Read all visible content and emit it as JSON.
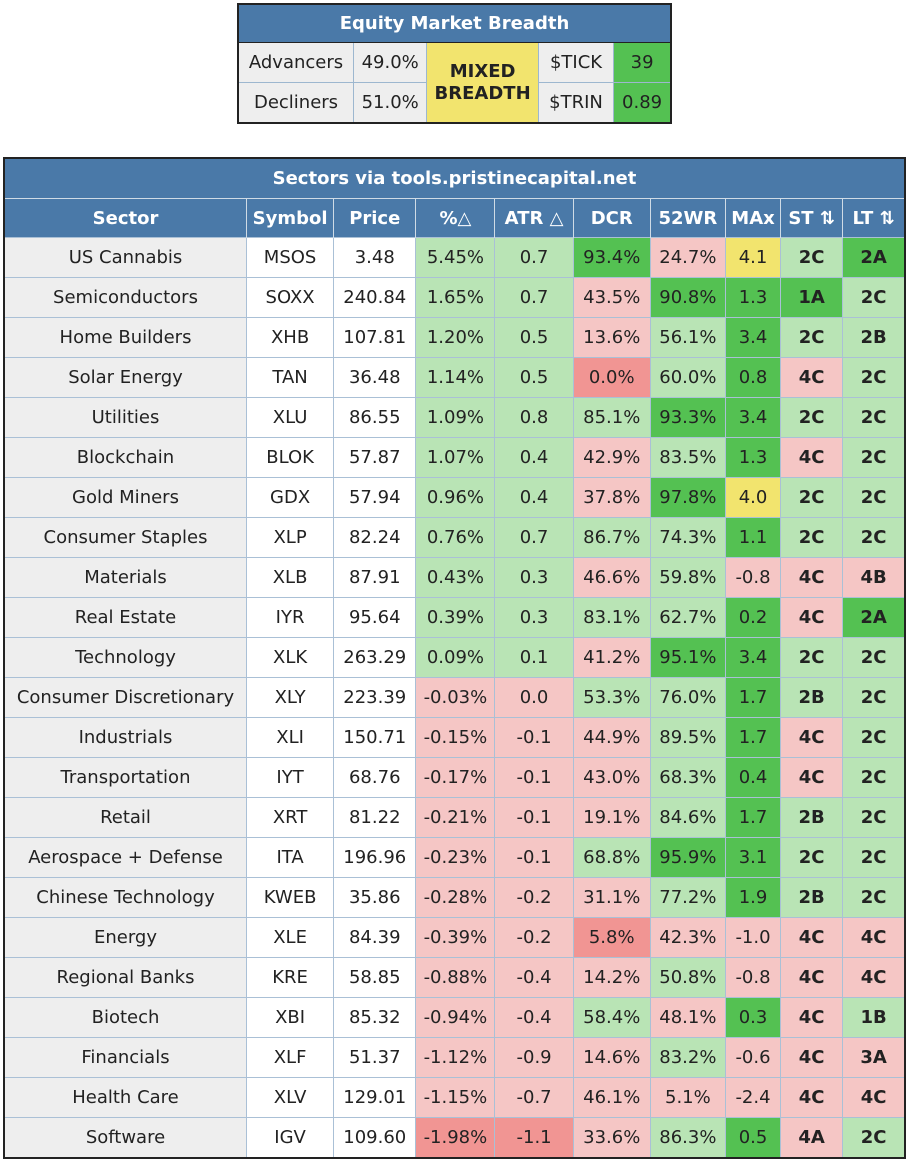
{
  "breadth": {
    "title": "Equity Market Breadth",
    "advancers_label": "Advancers",
    "advancers_value": "49.0%",
    "decliners_label": "Decliners",
    "decliners_value": "51.0%",
    "status_line1": "MIXED",
    "status_line2": "BREADTH",
    "tick_label": "$TICK",
    "tick_value": "39",
    "trin_label": "$TRIN",
    "trin_value": "0.89"
  },
  "chart_data": {
    "type": "table",
    "title": "Sectors via tools.pristinecapital.net",
    "columns": [
      "Sector",
      "Symbol",
      "Price",
      "%△",
      "ATR △",
      "DCR",
      "52WR",
      "MAx",
      "ST ⇅",
      "LT ⇅"
    ],
    "rows": [
      [
        "US Cannabis",
        "MSOS",
        "3.48",
        "5.45%",
        "0.7",
        "93.4%",
        "24.7%",
        "4.1",
        "2C",
        "2A"
      ],
      [
        "Semiconductors",
        "SOXX",
        "240.84",
        "1.65%",
        "0.7",
        "43.5%",
        "90.8%",
        "1.3",
        "1A",
        "2C"
      ],
      [
        "Home Builders",
        "XHB",
        "107.81",
        "1.20%",
        "0.5",
        "13.6%",
        "56.1%",
        "3.4",
        "2C",
        "2B"
      ],
      [
        "Solar Energy",
        "TAN",
        "36.48",
        "1.14%",
        "0.5",
        "0.0%",
        "60.0%",
        "0.8",
        "4C",
        "2C"
      ],
      [
        "Utilities",
        "XLU",
        "86.55",
        "1.09%",
        "0.8",
        "85.1%",
        "93.3%",
        "3.4",
        "2C",
        "2C"
      ],
      [
        "Blockchain",
        "BLOK",
        "57.87",
        "1.07%",
        "0.4",
        "42.9%",
        "83.5%",
        "1.3",
        "4C",
        "2C"
      ],
      [
        "Gold Miners",
        "GDX",
        "57.94",
        "0.96%",
        "0.4",
        "37.8%",
        "97.8%",
        "4.0",
        "2C",
        "2C"
      ],
      [
        "Consumer Staples",
        "XLP",
        "82.24",
        "0.76%",
        "0.7",
        "86.7%",
        "74.3%",
        "1.1",
        "2C",
        "2C"
      ],
      [
        "Materials",
        "XLB",
        "87.91",
        "0.43%",
        "0.3",
        "46.6%",
        "59.8%",
        "-0.8",
        "4C",
        "4B"
      ],
      [
        "Real Estate",
        "IYR",
        "95.64",
        "0.39%",
        "0.3",
        "83.1%",
        "62.7%",
        "0.2",
        "4C",
        "2A"
      ],
      [
        "Technology",
        "XLK",
        "263.29",
        "0.09%",
        "0.1",
        "41.2%",
        "95.1%",
        "3.4",
        "2C",
        "2C"
      ],
      [
        "Consumer Discretionary",
        "XLY",
        "223.39",
        "-0.03%",
        "0.0",
        "53.3%",
        "76.0%",
        "1.7",
        "2B",
        "2C"
      ],
      [
        "Industrials",
        "XLI",
        "150.71",
        "-0.15%",
        "-0.1",
        "44.9%",
        "89.5%",
        "1.7",
        "4C",
        "2C"
      ],
      [
        "Transportation",
        "IYT",
        "68.76",
        "-0.17%",
        "-0.1",
        "43.0%",
        "68.3%",
        "0.4",
        "4C",
        "2C"
      ],
      [
        "Retail",
        "XRT",
        "81.22",
        "-0.21%",
        "-0.1",
        "19.1%",
        "84.6%",
        "1.7",
        "2B",
        "2C"
      ],
      [
        "Aerospace + Defense",
        "ITA",
        "196.96",
        "-0.23%",
        "-0.1",
        "68.8%",
        "95.9%",
        "3.1",
        "2C",
        "2C"
      ],
      [
        "Chinese Technology",
        "KWEB",
        "35.86",
        "-0.28%",
        "-0.2",
        "31.1%",
        "77.2%",
        "1.9",
        "2B",
        "2C"
      ],
      [
        "Energy",
        "XLE",
        "84.39",
        "-0.39%",
        "-0.2",
        "5.8%",
        "42.3%",
        "-1.0",
        "4C",
        "4C"
      ],
      [
        "Regional Banks",
        "KRE",
        "58.85",
        "-0.88%",
        "-0.4",
        "14.2%",
        "50.8%",
        "-0.8",
        "4C",
        "4C"
      ],
      [
        "Biotech",
        "XBI",
        "85.32",
        "-0.94%",
        "-0.4",
        "58.4%",
        "48.1%",
        "0.3",
        "4C",
        "1B"
      ],
      [
        "Financials",
        "XLF",
        "51.37",
        "-1.12%",
        "-0.9",
        "14.6%",
        "83.2%",
        "-0.6",
        "4C",
        "3A"
      ],
      [
        "Health Care",
        "XLV",
        "129.01",
        "-1.15%",
        "-0.7",
        "46.1%",
        "5.1%",
        "-2.4",
        "4C",
        "4C"
      ],
      [
        "Software",
        "IGV",
        "109.60",
        "-1.98%",
        "-1.1",
        "33.6%",
        "86.3%",
        "0.5",
        "4A",
        "2C"
      ]
    ],
    "cell_colors": [
      [
        "l",
        "w",
        "w",
        "lg",
        "lg",
        "dg",
        "lr",
        "yl",
        "lg",
        "dg"
      ],
      [
        "l",
        "w",
        "w",
        "lg",
        "lg",
        "lr",
        "dg",
        "dg",
        "dg",
        "lg"
      ],
      [
        "l",
        "w",
        "w",
        "lg",
        "lg",
        "lr",
        "lg",
        "dg",
        "lg",
        "lg"
      ],
      [
        "l",
        "w",
        "w",
        "lg",
        "lg",
        "dr",
        "lg",
        "dg",
        "lr",
        "lg"
      ],
      [
        "l",
        "w",
        "w",
        "lg",
        "lg",
        "lg",
        "dg",
        "dg",
        "lg",
        "lg"
      ],
      [
        "l",
        "w",
        "w",
        "lg",
        "lg",
        "lr",
        "lg",
        "dg",
        "lr",
        "lg"
      ],
      [
        "l",
        "w",
        "w",
        "lg",
        "lg",
        "lr",
        "dg",
        "yl",
        "lg",
        "lg"
      ],
      [
        "l",
        "w",
        "w",
        "lg",
        "lg",
        "lg",
        "lg",
        "dg",
        "lg",
        "lg"
      ],
      [
        "l",
        "w",
        "w",
        "lg",
        "lg",
        "lr",
        "lg",
        "lr",
        "lr",
        "lr"
      ],
      [
        "l",
        "w",
        "w",
        "lg",
        "lg",
        "lg",
        "lg",
        "dg",
        "lr",
        "dg"
      ],
      [
        "l",
        "w",
        "w",
        "lg",
        "lg",
        "lr",
        "dg",
        "dg",
        "lg",
        "lg"
      ],
      [
        "l",
        "w",
        "w",
        "lr",
        "lr",
        "lg",
        "lg",
        "dg",
        "lg",
        "lg"
      ],
      [
        "l",
        "w",
        "w",
        "lr",
        "lr",
        "lr",
        "lg",
        "dg",
        "lr",
        "lg"
      ],
      [
        "l",
        "w",
        "w",
        "lr",
        "lr",
        "lr",
        "lg",
        "dg",
        "lr",
        "lg"
      ],
      [
        "l",
        "w",
        "w",
        "lr",
        "lr",
        "lr",
        "lg",
        "dg",
        "lg",
        "lg"
      ],
      [
        "l",
        "w",
        "w",
        "lr",
        "lr",
        "lg",
        "dg",
        "dg",
        "lg",
        "lg"
      ],
      [
        "l",
        "w",
        "w",
        "lr",
        "lr",
        "lr",
        "lg",
        "dg",
        "lg",
        "lg"
      ],
      [
        "l",
        "w",
        "w",
        "lr",
        "lr",
        "dr",
        "lr",
        "lr",
        "lr",
        "lr"
      ],
      [
        "l",
        "w",
        "w",
        "lr",
        "lr",
        "lr",
        "lg",
        "lr",
        "lr",
        "lr"
      ],
      [
        "l",
        "w",
        "w",
        "lr",
        "lr",
        "lg",
        "lr",
        "dg",
        "lr",
        "lg"
      ],
      [
        "l",
        "w",
        "w",
        "lr",
        "lr",
        "lr",
        "lg",
        "lr",
        "lr",
        "lr"
      ],
      [
        "l",
        "w",
        "w",
        "lr",
        "lr",
        "lr",
        "lr",
        "lr",
        "lr",
        "lr"
      ],
      [
        "l",
        "w",
        "w",
        "dr",
        "dr",
        "lr",
        "lg",
        "dg",
        "lr",
        "lg"
      ]
    ],
    "colors": {
      "header_blue": "#4a79a8",
      "light_green": "#b9e4b5",
      "dark_green": "#54c152",
      "light_red": "#f5c6c5",
      "dark_red": "#f19593",
      "yellow": "#f2e46e",
      "gray": "#eeeeee"
    }
  }
}
